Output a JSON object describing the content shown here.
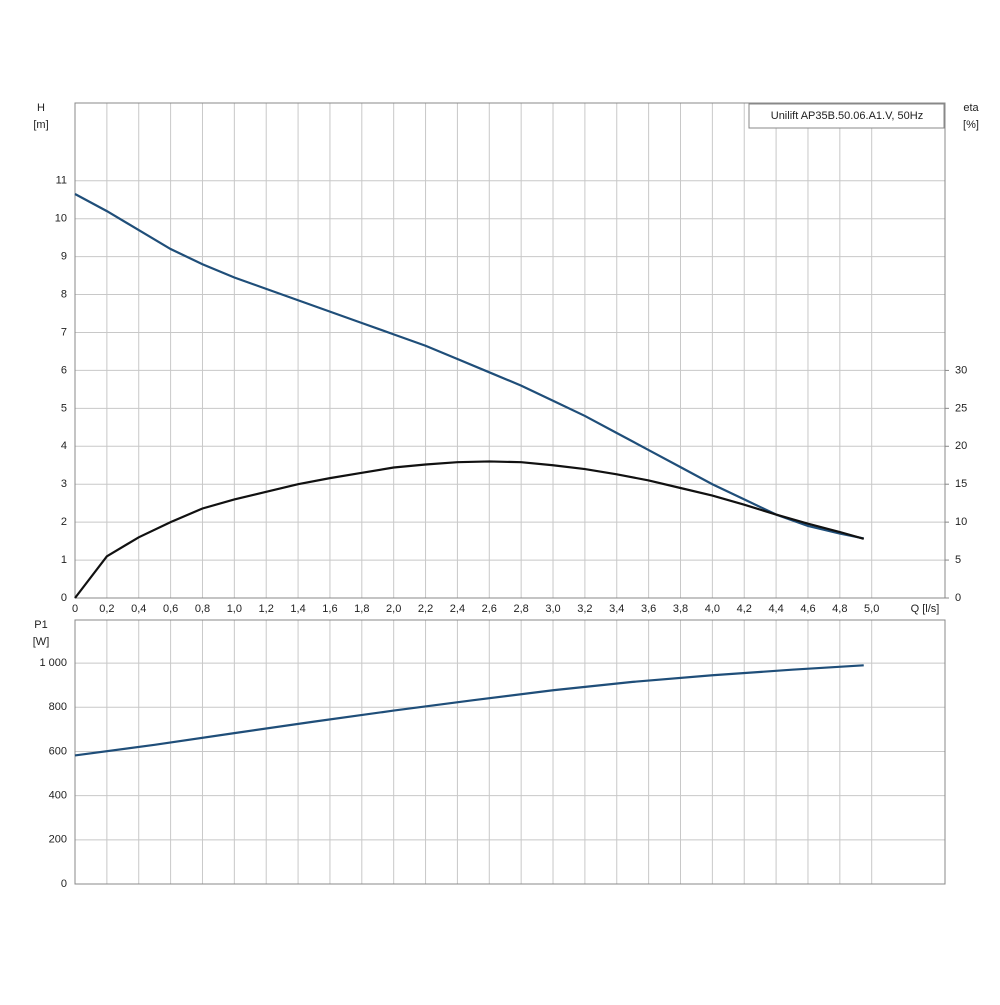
{
  "chart_data": [
    {
      "type": "line",
      "title": "Unilift AP35B.50.06.A1.V, 50Hz",
      "ylabel": "H",
      "yunit": "[m]",
      "y2label": "eta",
      "y2unit": "[%]",
      "xlabel": "Q [l/s]",
      "x": [
        0,
        0.2,
        0.4,
        0.6,
        0.8,
        1.0,
        1.2,
        1.4,
        1.6,
        1.8,
        2.0,
        2.2,
        2.4,
        2.6,
        2.8,
        3.0,
        3.2,
        3.4,
        3.6,
        3.8,
        4.0,
        4.2,
        4.4,
        4.6,
        4.8,
        4.95
      ],
      "series": [
        {
          "color": "#1f4e79",
          "values": [
            10.65,
            10.2,
            9.7,
            9.2,
            8.8,
            8.45,
            8.15,
            7.85,
            7.55,
            7.25,
            6.95,
            6.65,
            6.3,
            5.95,
            5.6,
            5.2,
            4.8,
            4.35,
            3.9,
            3.45,
            3.0,
            2.6,
            2.2,
            1.9,
            1.7,
            1.57
          ]
        },
        {
          "color": "#111111",
          "axis": "y2",
          "values": [
            0,
            5.5,
            8,
            10,
            11.8,
            13,
            14,
            15,
            15.8,
            16.5,
            17.2,
            17.6,
            17.9,
            18,
            17.9,
            17.5,
            17,
            16.3,
            15.5,
            14.5,
            13.5,
            12.3,
            11,
            9.8,
            8.7,
            7.8
          ]
        }
      ],
      "xlim": [
        0,
        5.46
      ],
      "xticks": [
        0,
        {
          "value": 0.2,
          "label": "0,2"
        },
        {
          "value": 0.4,
          "label": "0,4"
        },
        {
          "value": 0.6,
          "label": "0,6"
        },
        {
          "value": 0.8,
          "label": "0,8"
        },
        {
          "value": 1.0,
          "label": "1,0"
        },
        {
          "value": 1.2,
          "label": "1,2"
        },
        {
          "value": 1.4,
          "label": "1,4"
        },
        {
          "value": 1.6,
          "label": "1,6"
        },
        {
          "value": 1.8,
          "label": "1,8"
        },
        {
          "value": 2.0,
          "label": "2,0"
        },
        {
          "value": 2.2,
          "label": "2,2"
        },
        {
          "value": 2.4,
          "label": "2,4"
        },
        {
          "value": 2.6,
          "label": "2,6"
        },
        {
          "value": 2.8,
          "label": "2,8"
        },
        {
          "value": 3.0,
          "label": "3,0"
        },
        {
          "value": 3.2,
          "label": "3,2"
        },
        {
          "value": 3.4,
          "label": "3,4"
        },
        {
          "value": 3.6,
          "label": "3,6"
        },
        {
          "value": 3.8,
          "label": "3,8"
        },
        {
          "value": 4.0,
          "label": "4,0"
        },
        {
          "value": 4.2,
          "label": "4,2"
        },
        {
          "value": 4.4,
          "label": "4,4"
        },
        {
          "value": 4.6,
          "label": "4,6"
        },
        {
          "value": 4.8,
          "label": "4,8"
        },
        {
          "value": 5.0,
          "label": "5,0"
        }
      ],
      "ylim": [
        0,
        13.05
      ],
      "yticks": [
        0,
        1,
        2,
        3,
        4,
        5,
        6,
        7,
        8,
        9,
        10,
        11
      ],
      "y2lim": [
        0,
        65.25
      ],
      "y2ticks": [
        0,
        5,
        10,
        15,
        20,
        25,
        30
      ],
      "grid": true
    },
    {
      "type": "line",
      "ylabel": "P1",
      "yunit": "[W]",
      "x": [
        0,
        0.5,
        1.0,
        1.5,
        2.0,
        2.5,
        3.0,
        3.5,
        4.0,
        4.5,
        4.95
      ],
      "series": [
        {
          "color": "#1f4e79",
          "values": [
            582,
            630,
            683,
            735,
            785,
            832,
            877,
            915,
            945,
            970,
            990
          ]
        }
      ],
      "xlim": [
        0,
        5.46
      ],
      "ylim": [
        0,
        1195
      ],
      "yticks": [
        0,
        200,
        400,
        600,
        800,
        {
          "value": 1000,
          "label": "1 000"
        }
      ],
      "grid": true
    }
  ]
}
